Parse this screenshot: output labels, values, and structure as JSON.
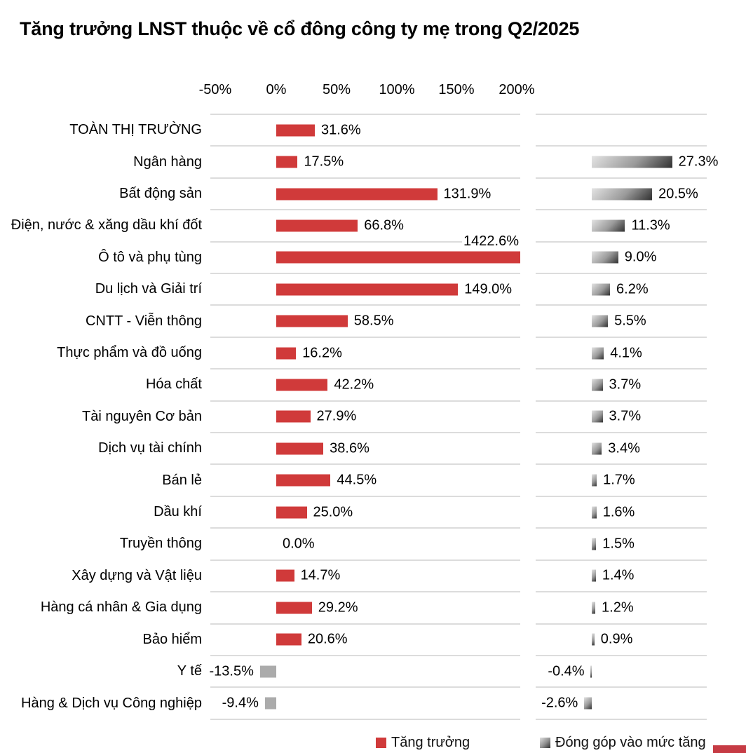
{
  "title": "Tăng trưởng LNST thuộc về cổ đông công ty mẹ trong Q2/2025",
  "axis": {
    "ticks": [
      "-50%",
      "0%",
      "50%",
      "100%",
      "150%",
      "200%"
    ]
  },
  "legend": {
    "growth": "Tăng trưởng",
    "contribution": "Đóng góp vào mức tăng"
  },
  "colors": {
    "growth_positive": "#d03a3a",
    "growth_negative": "#ababab",
    "contribution_gradient_start": "#e3e3e3",
    "contribution_gradient_end": "#303030",
    "gridline": "#dcdcdc",
    "footer_accent": "#c63b44"
  },
  "rows": [
    {
      "label": "TOÀN THỊ TRƯỜNG",
      "growth": 31.6,
      "growth_label": "31.6%",
      "contrib": null,
      "contrib_label": ""
    },
    {
      "label": "Ngân hàng",
      "growth": 17.5,
      "growth_label": "17.5%",
      "contrib": 27.3,
      "contrib_label": "27.3%"
    },
    {
      "label": "Bất động sản",
      "growth": 131.9,
      "growth_label": "131.9%",
      "contrib": 20.5,
      "contrib_label": "20.5%"
    },
    {
      "label": "Điện, nước & xăng dầu khí đốt",
      "growth": 66.8,
      "growth_label": "66.8%",
      "contrib": 11.3,
      "contrib_label": "11.3%"
    },
    {
      "label": "Ô tô và phụ tùng",
      "growth": 1422.6,
      "growth_label": "1422.6%",
      "contrib": 9.0,
      "contrib_label": "9.0%"
    },
    {
      "label": "Du lịch và Giải trí",
      "growth": 149.0,
      "growth_label": "149.0%",
      "contrib": 6.2,
      "contrib_label": "6.2%"
    },
    {
      "label": "CNTT - Viễn thông",
      "growth": 58.5,
      "growth_label": "58.5%",
      "contrib": 5.5,
      "contrib_label": "5.5%"
    },
    {
      "label": "Thực phẩm và đồ uống",
      "growth": 16.2,
      "growth_label": "16.2%",
      "contrib": 4.1,
      "contrib_label": "4.1%"
    },
    {
      "label": "Hóa chất",
      "growth": 42.2,
      "growth_label": "42.2%",
      "contrib": 3.7,
      "contrib_label": "3.7%"
    },
    {
      "label": "Tài nguyên Cơ bản",
      "growth": 27.9,
      "growth_label": "27.9%",
      "contrib": 3.7,
      "contrib_label": "3.7%"
    },
    {
      "label": "Dịch vụ tài chính",
      "growth": 38.6,
      "growth_label": "38.6%",
      "contrib": 3.4,
      "contrib_label": "3.4%"
    },
    {
      "label": "Bán lẻ",
      "growth": 44.5,
      "growth_label": "44.5%",
      "contrib": 1.7,
      "contrib_label": "1.7%"
    },
    {
      "label": "Dầu khí",
      "growth": 25.0,
      "growth_label": "25.0%",
      "contrib": 1.6,
      "contrib_label": "1.6%"
    },
    {
      "label": "Truyền thông",
      "growth": 0.0,
      "growth_label": "0.0%",
      "contrib": 1.5,
      "contrib_label": "1.5%"
    },
    {
      "label": "Xây dựng và Vật liệu",
      "growth": 14.7,
      "growth_label": "14.7%",
      "contrib": 1.4,
      "contrib_label": "1.4%"
    },
    {
      "label": "Hàng cá nhân & Gia dụng",
      "growth": 29.2,
      "growth_label": "29.2%",
      "contrib": 1.2,
      "contrib_label": "1.2%"
    },
    {
      "label": "Bảo hiểm",
      "growth": 20.6,
      "growth_label": "20.6%",
      "contrib": 0.9,
      "contrib_label": "0.9%"
    },
    {
      "label": "Y tế",
      "growth": -13.5,
      "growth_label": "-13.5%",
      "contrib": -0.4,
      "contrib_label": "-0.4%"
    },
    {
      "label": "Hàng & Dịch vụ Công nghiệp",
      "growth": -9.4,
      "growth_label": "-9.4%",
      "contrib": -2.6,
      "contrib_label": "-2.6%"
    }
  ],
  "chart_data": {
    "type": "bar",
    "orientation": "horizontal",
    "title": "Tăng trưởng LNST thuộc về cổ đông công ty mẹ trong Q2/2025",
    "categories": [
      "TOÀN THỊ TRƯỜNG",
      "Ngân hàng",
      "Bất động sản",
      "Điện, nước & xăng dầu khí đốt",
      "Ô tô và phụ tùng",
      "Du lịch và Giải trí",
      "CNTT - Viễn thông",
      "Thực phẩm và đồ uống",
      "Hóa chất",
      "Tài nguyên Cơ bản",
      "Dịch vụ tài chính",
      "Bán lẻ",
      "Dầu khí",
      "Truyền thông",
      "Xây dựng và Vật liệu",
      "Hàng cá nhân & Gia dụng",
      "Bảo hiểm",
      "Y tế",
      "Hàng & Dịch vụ Công nghiệp"
    ],
    "series": [
      {
        "name": "Tăng trưởng",
        "unit": "%",
        "values": [
          31.6,
          17.5,
          131.9,
          66.8,
          1422.6,
          149.0,
          58.5,
          16.2,
          42.2,
          27.9,
          38.6,
          44.5,
          25.0,
          0.0,
          14.7,
          29.2,
          20.6,
          -13.5,
          -9.4
        ]
      },
      {
        "name": "Đóng góp vào mức tăng",
        "unit": "%",
        "values": [
          null,
          27.3,
          20.5,
          11.3,
          9.0,
          6.2,
          5.5,
          4.1,
          3.7,
          3.7,
          3.4,
          1.7,
          1.6,
          1.5,
          1.4,
          1.2,
          0.9,
          -0.4,
          -2.6
        ]
      }
    ],
    "x_ticks": [
      -50,
      0,
      50,
      100,
      150,
      200
    ],
    "xlim_growth_panel": [
      -55,
      202
    ],
    "grid": "horizontal row separators",
    "legend_position": "bottom",
    "notes": "Growth bar for 'Ô tô và phụ tùng' (1422.6%) is clipped at the panel edge; negative growth bars are gray."
  }
}
